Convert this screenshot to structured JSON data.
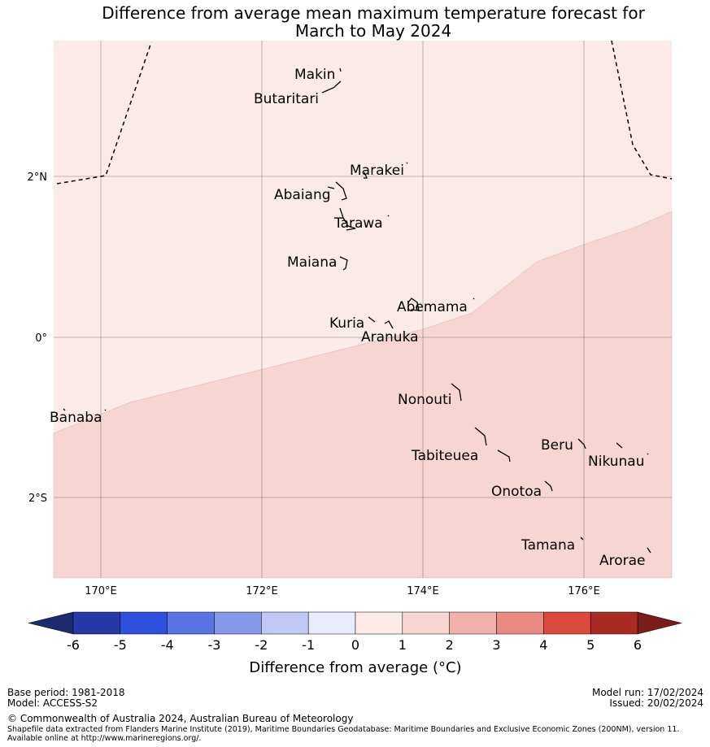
{
  "title": [
    "Difference from average mean maximum temperature forecast for",
    "March to May 2024"
  ],
  "map": {
    "lon_ticks": [
      "170°E",
      "172°E",
      "174°E",
      "176°E"
    ],
    "lat_ticks": [
      "2°N",
      "0°",
      "2°S"
    ],
    "places": [
      "Makin",
      "Butaritari",
      "Marakei",
      "Abaiang",
      "Tarawa",
      "Maiana",
      "Abemama",
      "Kuria",
      "Aranuka",
      "Nonouti",
      "Banaba",
      "Beru",
      "Tabiteuea",
      "Nikunau",
      "Onotoa",
      "Tamana",
      "Arorae"
    ]
  },
  "colorbar": {
    "label": "Difference from average (°C)",
    "ticks": [
      "-6",
      "-5",
      "-4",
      "-3",
      "-2",
      "-1",
      "0",
      "1",
      "2",
      "3",
      "4",
      "5",
      "6"
    ],
    "colors": [
      "#2539a8",
      "#2f4fdd",
      "#5a74e3",
      "#8598ea",
      "#c0c8f3",
      "#e9ecfa",
      "#fcebe9",
      "#f6d5d3",
      "#f0b0aa",
      "#e98a82",
      "#dc4a3f",
      "#a82a22"
    ],
    "under_color": "#1c2a72",
    "over_color": "#7a1c17"
  },
  "footer": {
    "base_period": "Base period: 1981-2018",
    "model": "Model: ACCESS-S2",
    "model_run": "Model run: 17/02/2024",
    "issued": "Issued: 20/02/2024",
    "copyright": "© Commonwealth of Australia 2024, Australian Bureau of Meteorology",
    "source": "Shapefile data extracted from Flanders Marine Institute (2019), Maritime Boundaries Geodatabase: Maritime Boundaries and Exclusive Economic Zones (200NM), version 11. Available online at http://www.marineregions.org/."
  }
}
